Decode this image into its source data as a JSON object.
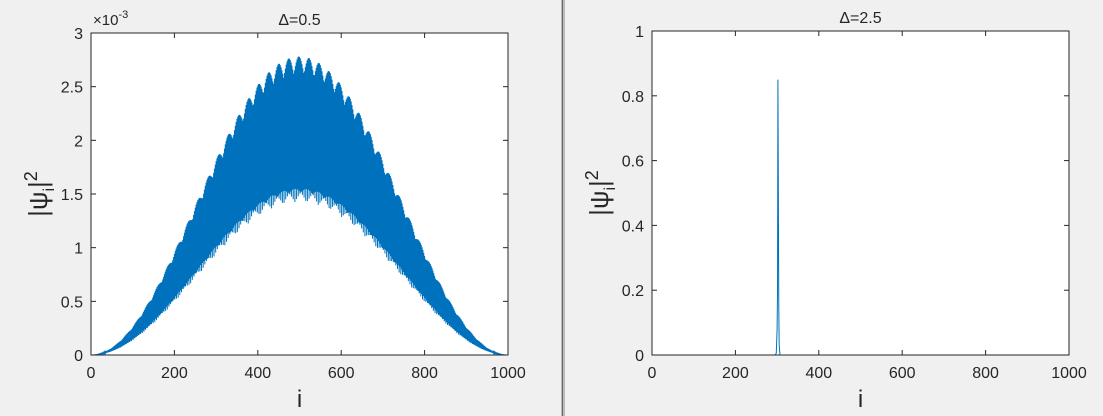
{
  "chart_data": [
    {
      "type": "line",
      "title": "Δ=0.5",
      "xlabel": "i",
      "ylabel_base": "|ψ",
      "ylabel_subscript": "i",
      "ylabel_suffix": "|",
      "ylabel_superscript": "2",
      "xlim": [
        0,
        1000
      ],
      "ylim": [
        0,
        0.003
      ],
      "x_ticks": [
        0,
        200,
        400,
        600,
        800,
        1000
      ],
      "x_tick_labels": [
        "0",
        "200",
        "400",
        "600",
        "800",
        "1000"
      ],
      "y_ticks": [
        0,
        0.0005,
        0.001,
        0.0015,
        0.002,
        0.0025,
        0.003
      ],
      "y_tick_labels": [
        "0",
        "0.5",
        "1",
        "1.5",
        "2",
        "2.5",
        "3"
      ],
      "y_exponent_base": "×10",
      "y_exponent_power": "-3",
      "grid": false,
      "color": "#0072bd",
      "n_points": 1000,
      "envelope": {
        "shape": "sin^2",
        "peak_x": 500,
        "upper_peak": 0.0027,
        "lower_peak": 0.00155,
        "mean_peak": 0.0019
      }
    },
    {
      "type": "line",
      "title": "Δ=2.5",
      "xlabel": "i",
      "ylabel_base": "|ψ",
      "ylabel_subscript": "i",
      "ylabel_suffix": "|",
      "ylabel_superscript": "2",
      "xlim": [
        0,
        1000
      ],
      "ylim": [
        0,
        1
      ],
      "x_ticks": [
        0,
        200,
        400,
        600,
        800,
        1000
      ],
      "x_tick_labels": [
        "0",
        "200",
        "400",
        "600",
        "800",
        "1000"
      ],
      "y_ticks": [
        0,
        0.2,
        0.4,
        0.6,
        0.8,
        1
      ],
      "y_tick_labels": [
        "0",
        "0.2",
        "0.4",
        "0.6",
        "0.8",
        "1"
      ],
      "grid": false,
      "color": "#0072bd",
      "x": [
        0,
        295,
        298,
        300,
        301,
        302,
        304,
        305,
        307,
        1000
      ],
      "y": [
        0,
        0,
        0.005,
        0.08,
        0.2,
        0.85,
        0.15,
        0.03,
        0,
        0
      ]
    }
  ]
}
